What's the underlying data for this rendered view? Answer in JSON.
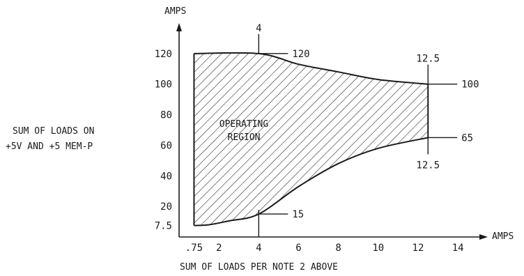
{
  "chart_data": {
    "type": "area",
    "y_axis_title": "AMPS",
    "x_axis_title": "AMPS",
    "xlabel": "SUM OF LOADS PER NOTE 2 ABOVE",
    "ylabel_lines": [
      "SUM OF LOADS ON",
      "+5V AND +5 MEM-P"
    ],
    "x_ticks": [
      {
        "value": 0.75,
        "label": ".75"
      },
      {
        "value": 2,
        "label": "2"
      },
      {
        "value": 4,
        "label": "4"
      },
      {
        "value": 6,
        "label": "6"
      },
      {
        "value": 8,
        "label": "8"
      },
      {
        "value": 10,
        "label": "10"
      },
      {
        "value": 12,
        "label": "12"
      },
      {
        "value": 14,
        "label": "14"
      }
    ],
    "y_ticks": [
      {
        "value": 7.5,
        "label": "7.5"
      },
      {
        "value": 20,
        "label": "20"
      },
      {
        "value": 40,
        "label": "40"
      },
      {
        "value": 60,
        "label": "60"
      },
      {
        "value": 80,
        "label": "80"
      },
      {
        "value": 100,
        "label": "100"
      },
      {
        "value": 120,
        "label": "120"
      }
    ],
    "xlim": [
      0,
      15.5
    ],
    "ylim": [
      0,
      140
    ],
    "upper_boundary": [
      {
        "x": 0.75,
        "y": 120
      },
      {
        "x": 4,
        "y": 120
      },
      {
        "x": 6,
        "y": 113
      },
      {
        "x": 8,
        "y": 108
      },
      {
        "x": 10,
        "y": 103
      },
      {
        "x": 12.5,
        "y": 100
      }
    ],
    "lower_boundary": [
      {
        "x": 0.75,
        "y": 7.5
      },
      {
        "x": 1.5,
        "y": 8
      },
      {
        "x": 2.5,
        "y": 10.5
      },
      {
        "x": 4,
        "y": 15
      },
      {
        "x": 6,
        "y": 33
      },
      {
        "x": 8,
        "y": 48
      },
      {
        "x": 10,
        "y": 58
      },
      {
        "x": 12.5,
        "y": 65
      }
    ],
    "region_label_lines": [
      "OPERATING",
      "REGION"
    ],
    "annotations": [
      {
        "text": "4",
        "x": 4,
        "y": 120,
        "position": "above"
      },
      {
        "text": "120",
        "x": 4,
        "y": 120,
        "position": "right"
      },
      {
        "text": "12.5",
        "x": 12.5,
        "y": 100,
        "position": "above"
      },
      {
        "text": "100",
        "x": 12.5,
        "y": 100,
        "position": "right"
      },
      {
        "text": "65",
        "x": 12.5,
        "y": 65,
        "position": "right"
      },
      {
        "text": "12.5",
        "x": 12.5,
        "y": 65,
        "position": "below"
      },
      {
        "text": "15",
        "x": 4,
        "y": 15,
        "position": "right"
      }
    ],
    "grid": false
  }
}
